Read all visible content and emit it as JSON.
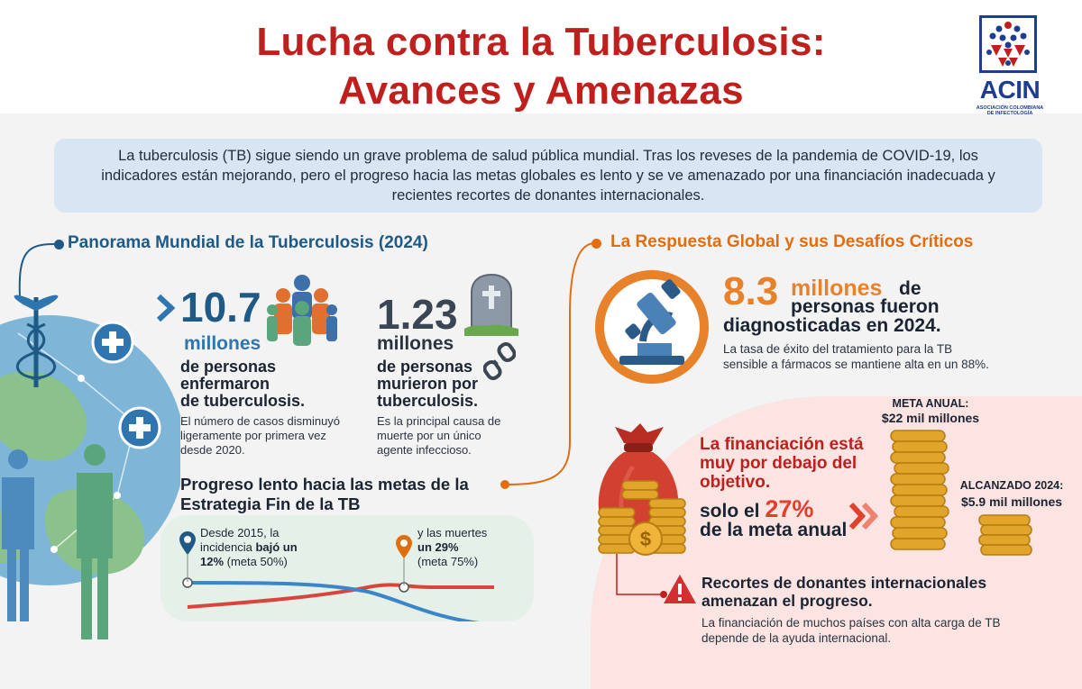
{
  "header": {
    "title_line1": "Lucha contra la Tuberculosis:",
    "title_line2": "Avances y Amenazas",
    "logo_text": "ACIN",
    "logo_subtext": "ASOCIACIÓN COLOMBIANA DE INFECTOLOGÍA"
  },
  "intro": {
    "text": "La tuberculosis (TB) sigue siendo un grave problema de salud pública mundial. Tras los reveses de la pandemia de COVID-19, los indicadores están mejorando, pero el progreso hacia las metas globales es lento y se ve amenazado por una financiación inadecuada y recientes recortes de donantes internacionales."
  },
  "panorama": {
    "title": "Panorama Mundial de la Tuberculosis (2024)",
    "cases": {
      "value": "10.7",
      "unit": "millones",
      "line1": "de personas",
      "line2": "enfermaron",
      "line3": "de tuberculosis.",
      "note1": "El número de casos disminuyó",
      "note2": "ligeramente por primera vez",
      "note3": "desde 2020."
    },
    "deaths": {
      "value": "1.23",
      "unit": "millones",
      "line1": "de personas",
      "line2": "murieron por",
      "line3": "tuberculosis.",
      "note1": "Es la principal causa de",
      "note2": "muerte por un único",
      "note3": "agente infeccioso."
    },
    "progress": {
      "title_line1": "Progreso lento hacia las metas de la",
      "title_line2": "Estrategia Fin de la TB",
      "incidence_line1": "Desde 2015, la",
      "incidence_line2_pre": "incidencia ",
      "incidence_line2_bold": "bajó un",
      "incidence_line3_bold": "12%",
      "incidence_line3_rest": " (meta 50%)",
      "deaths_line1": "y las muertes",
      "deaths_line2_bold": "un 29%",
      "deaths_line3": "(meta 75%)"
    }
  },
  "response": {
    "title": "La Respuesta Global y sus Desafíos Críticos",
    "diagnosed": {
      "value": "8.3",
      "unit": "millones",
      "de": "de",
      "line2": "personas fueron",
      "line3": "diagnosticadas en 2024.",
      "note1": "La tasa de éxito del tratamiento para la TB",
      "note2": "sensible a fármacos se mantiene alta en un 88%."
    },
    "funding": {
      "line1": "La financiación está",
      "line2": "muy por debajo del",
      "line3": "objetivo.",
      "solo_pre": "solo el ",
      "percent": "27%",
      "meta_line": "de la meta anual",
      "annual_label": "META ANUAL:",
      "annual_value": "$22 mil millones",
      "reached_label": "ALCANZADO 2024:",
      "reached_value": "$5.9 mil millones"
    },
    "cuts": {
      "line1": "Recortes de donantes internacionales",
      "line2": "amenazan el progreso.",
      "note1": "La financiación de muchos países con alta carga de TB",
      "note2": "depende de la ayuda internacional."
    }
  },
  "icons": {
    "globe": "globe-with-people-icon",
    "caduceus": "caduceus-icon",
    "people": "people-group-icon",
    "tombstone": "tombstone-icon",
    "broken_chain": "broken-chain-icon",
    "microscope": "microscope-icon",
    "money_bag": "money-bag-icon",
    "coins": "coin-stacks-icon",
    "warning": "warning-icon",
    "location_pin": "location-pin-icon"
  },
  "colors": {
    "title_red": "#c0201d",
    "blue": "#1f5a86",
    "orange": "#e06d10",
    "red_line": "#d9453c",
    "blue_line": "#3a86c8"
  }
}
